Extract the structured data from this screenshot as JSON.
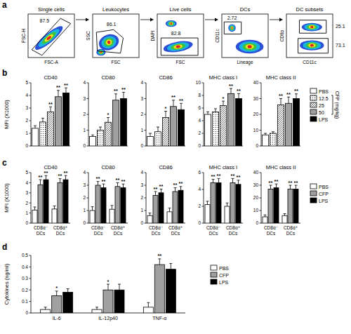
{
  "chart_data": [
    {
      "type": "gating",
      "panel_label": "a",
      "plots": [
        {
          "title": "Single cells",
          "x_label": "FSC-A",
          "y_label": "FSC-H",
          "gates": [
            87.5
          ]
        },
        {
          "title": "Leukocytes",
          "x_label": "FSC",
          "y_label": "SSC",
          "gates": [
            86.1
          ]
        },
        {
          "title": "Live cells",
          "x_label": "FSC",
          "y_label": "DAPI",
          "gates": [
            82.8
          ]
        },
        {
          "title": "DCs",
          "x_label": "Lineage",
          "y_label": "CD11c",
          "gates": [
            2.72
          ]
        },
        {
          "title": "DC subsets",
          "x_label": "CD11c",
          "y_label": "CD8α",
          "gates": [
            25.1,
            73.1
          ]
        }
      ]
    },
    {
      "type": "bar",
      "panel_label": "b",
      "y_label": "MFI (X1000)",
      "legend": "right",
      "legend_group_label": "CFP (mg/kg)",
      "series": [
        {
          "name": "PBS",
          "color": "#ffffff"
        },
        {
          "name": "12.5",
          "color": "#ffffff"
        },
        {
          "name": "25",
          "color": "#ffffff"
        },
        {
          "name": "50",
          "color": "#a0a0a0"
        },
        {
          "name": "LPS",
          "color": "#000000"
        }
      ],
      "subplots": [
        {
          "title": "CD40",
          "ylim": [
            0,
            5
          ],
          "yticks": [
            0,
            1,
            2,
            3,
            4,
            5
          ],
          "values": [
            1.4,
            1.9,
            2.7,
            3.9,
            4.2
          ],
          "errors": [
            0.2,
            0.3,
            0.4,
            0.5,
            0.4
          ],
          "annotations": [
            null,
            null,
            "**",
            "**",
            "**"
          ]
        },
        {
          "title": "CD80",
          "ylim": [
            0,
            4
          ],
          "yticks": [
            0,
            1,
            2,
            3,
            4
          ],
          "values": [
            0.6,
            1.0,
            1.5,
            2.9,
            3.0
          ],
          "errors": [
            0.1,
            0.2,
            0.3,
            0.4,
            0.4
          ],
          "annotations": [
            null,
            null,
            "*",
            "**",
            "**"
          ]
        },
        {
          "title": "CD86",
          "ylim": [
            0,
            4
          ],
          "yticks": [
            0,
            1,
            2,
            3,
            4
          ],
          "values": [
            0.6,
            0.9,
            1.8,
            2.5,
            2.3
          ],
          "errors": [
            0.2,
            0.3,
            0.4,
            0.4,
            0.4
          ],
          "annotations": [
            null,
            null,
            "*",
            "**",
            "**"
          ]
        },
        {
          "title": "MHC class I",
          "ylim": [
            0,
            10
          ],
          "yticks": [
            0,
            2,
            4,
            6,
            8,
            10
          ],
          "values": [
            5.0,
            5.4,
            6.4,
            8.3,
            7.5
          ],
          "errors": [
            0.4,
            0.5,
            0.7,
            0.8,
            0.8
          ],
          "annotations": [
            null,
            null,
            "*",
            "**",
            "**"
          ]
        },
        {
          "title": "MHC class II",
          "ylim": [
            0,
            40
          ],
          "yticks": [
            0,
            10,
            20,
            30,
            40
          ],
          "values": [
            7,
            8,
            26,
            27,
            30
          ],
          "errors": [
            1,
            1,
            4,
            4,
            3
          ],
          "annotations": [
            null,
            null,
            "**",
            "**",
            "**"
          ]
        }
      ]
    },
    {
      "type": "bar",
      "panel_label": "c",
      "y_label": "MFI (X1000)",
      "legend": "right",
      "series": [
        {
          "name": "PBS",
          "color": "#ffffff"
        },
        {
          "name": "CFP",
          "color": "#a0a0a0"
        },
        {
          "name": "LPS",
          "color": "#000000"
        }
      ],
      "subplots": [
        {
          "title": "CD40",
          "categories": [
            "CD8α⁻ DCs",
            "CD8α⁺ DCs"
          ],
          "ylim": [
            0,
            5
          ],
          "yticks": [
            0,
            1,
            2,
            3,
            4,
            5
          ],
          "values": [
            [
              1.3,
              1.4
            ],
            [
              3.8,
              4.0
            ],
            [
              4.3,
              4.3
            ]
          ],
          "errors": [
            [
              0.3,
              0.3
            ],
            [
              0.5,
              0.4
            ],
            [
              0.4,
              0.4
            ]
          ],
          "annotations": [
            [
              null,
              null
            ],
            [
              "**",
              "**"
            ],
            [
              "**",
              "**"
            ]
          ]
        },
        {
          "title": "CD80",
          "categories": [
            "CD8α⁻ DCs",
            "CD8α⁺ DCs"
          ],
          "ylim": [
            0,
            4
          ],
          "yticks": [
            0,
            1,
            2,
            3,
            4
          ],
          "values": [
            [
              1.0,
              1.1
            ],
            [
              3.0,
              2.9
            ],
            [
              2.8,
              2.8
            ]
          ],
          "errors": [
            [
              0.3,
              0.3
            ],
            [
              0.3,
              0.3
            ],
            [
              0.3,
              0.3
            ]
          ],
          "annotations": [
            [
              null,
              null
            ],
            [
              "**",
              "**"
            ],
            [
              "**",
              "**"
            ]
          ]
        },
        {
          "title": "CD86",
          "categories": [
            "CD8α⁻ DCs",
            "CD8α⁺ DCs"
          ],
          "ylim": [
            0,
            4
          ],
          "yticks": [
            0,
            1,
            2,
            3,
            4
          ],
          "values": [
            [
              0.6,
              0.9
            ],
            [
              2.2,
              2.5
            ],
            [
              2.4,
              2.6
            ]
          ],
          "errors": [
            [
              0.2,
              0.3
            ],
            [
              0.3,
              0.3
            ],
            [
              0.3,
              0.3
            ]
          ],
          "annotations": [
            [
              null,
              null
            ],
            [
              "**",
              "**"
            ],
            [
              "**",
              "**"
            ]
          ]
        },
        {
          "title": "MHC class I",
          "categories": [
            "CD8α⁻ DCs",
            "CD8α⁺ DCs"
          ],
          "ylim": [
            0,
            6
          ],
          "yticks": [
            0,
            2,
            4,
            6
          ],
          "values": [
            [
              2.2,
              2.0
            ],
            [
              4.8,
              4.8
            ],
            [
              4.8,
              4.6
            ]
          ],
          "errors": [
            [
              0.4,
              0.4
            ],
            [
              0.4,
              0.5
            ],
            [
              0.5,
              0.5
            ]
          ],
          "annotations": [
            [
              null,
              null
            ],
            [
              "**",
              "**"
            ],
            [
              "**",
              "**"
            ]
          ]
        },
        {
          "title": "MHC class II",
          "categories": [
            "CD8α⁻ DCs",
            "CD8α⁺ DCs"
          ],
          "ylim": [
            0,
            40
          ],
          "yticks": [
            0,
            10,
            20,
            30,
            40
          ],
          "values": [
            [
              5,
              6
            ],
            [
              27,
              27
            ],
            [
              28,
              27
            ]
          ],
          "errors": [
            [
              1.5,
              1.5
            ],
            [
              3,
              3
            ],
            [
              3,
              3
            ]
          ],
          "annotations": [
            [
              null,
              null
            ],
            [
              "**",
              "**"
            ],
            [
              "**",
              "**"
            ]
          ]
        }
      ]
    },
    {
      "type": "bar",
      "panel_label": "d",
      "y_label": "Cytokines (ng/ml)",
      "legend": "right",
      "categories": [
        "IL-6",
        "IL-12p40",
        "TNF-α"
      ],
      "ylim": [
        0,
        0.5
      ],
      "yticks": [
        0,
        0.1,
        0.2,
        0.3,
        0.4,
        0.5
      ],
      "series": [
        {
          "name": "PBS",
          "color": "#ffffff",
          "values": [
            0.03,
            0.03,
            0.05
          ],
          "errors": [
            0.02,
            0.02,
            0.04
          ],
          "annotations": [
            null,
            null,
            null
          ]
        },
        {
          "name": "CFP",
          "color": "#a0a0a0",
          "values": [
            0.15,
            0.2,
            0.42
          ],
          "errors": [
            0.04,
            0.05,
            0.05
          ],
          "annotations": [
            "*",
            "*",
            "**"
          ]
        },
        {
          "name": "LPS",
          "color": "#000000",
          "values": [
            0.18,
            0.2,
            0.38
          ],
          "errors": [
            0.03,
            0.05,
            0.05
          ],
          "annotations": [
            null,
            null,
            null
          ]
        }
      ]
    }
  ]
}
